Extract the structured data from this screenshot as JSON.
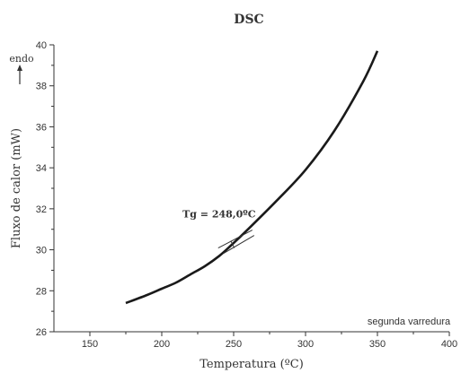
{
  "chart_data": {
    "type": "line",
    "title": "DSC",
    "xlabel": "Temperatura (ºC)",
    "ylabel": "Fluxo de calor (mW)",
    "xlim": [
      125,
      400
    ],
    "ylim": [
      26,
      40
    ],
    "x_ticks": [
      150,
      200,
      250,
      300,
      350,
      400
    ],
    "y_ticks": [
      26,
      28,
      30,
      32,
      34,
      36,
      38,
      40
    ],
    "grid": false,
    "legend": "none",
    "series": [
      {
        "x": [
          175,
          190,
          200,
          210,
          220,
          230,
          240,
          248,
          260,
          280,
          300,
          320,
          340,
          350
        ],
        "y": [
          27.4,
          27.8,
          28.1,
          28.4,
          28.8,
          29.2,
          29.7,
          30.2,
          31.0,
          32.4,
          33.9,
          35.8,
          38.2,
          39.7
        ]
      }
    ],
    "annotations": {
      "tg_label": "Tg = 248,0ºC",
      "tg_x": 248,
      "tg_y": 30.35,
      "sweep_label": "segunda varredura",
      "endo_label": "endo"
    }
  },
  "colors": {
    "curve": "#1a1a1a",
    "axis": "#333333",
    "text": "#333333"
  }
}
